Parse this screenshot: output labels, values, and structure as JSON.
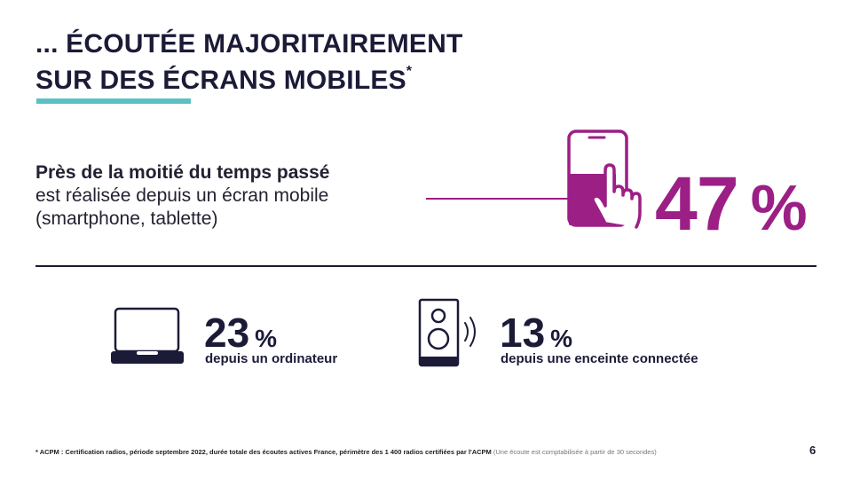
{
  "title": {
    "line1": "... ÉCOUTÉE MAJORITAIREMENT",
    "line2": "SUR DES ÉCRANS MOBILES",
    "asterisk": "*"
  },
  "lead": {
    "bold": "Près de la moitié du temps passé",
    "line2": "est réalisée depuis un écran mobile",
    "line3": "(smartphone, tablette)"
  },
  "mobile_stat": {
    "value": "47",
    "unit": "%",
    "icon": "smartphone-touch-icon"
  },
  "computer_stat": {
    "value": "23",
    "unit": "%",
    "label": "depuis un ordinateur",
    "icon": "laptop-icon"
  },
  "speaker_stat": {
    "value": "13",
    "unit": "%",
    "label": "depuis une enceinte connectée",
    "icon": "connected-speaker-icon"
  },
  "footnote": {
    "main": "* ACPM : Certification radios, période septembre 2022, durée totale des écoutes actives France, périmètre des 1 400 radios certifiées par l'ACPM",
    "secondary": " (Une écoute est comptabilisée à partir de 30 secondes)"
  },
  "page_number": "6",
  "colors": {
    "accent": "#9c1f85",
    "title_bar": "#5cbfc2",
    "dark": "#1b1b38"
  }
}
